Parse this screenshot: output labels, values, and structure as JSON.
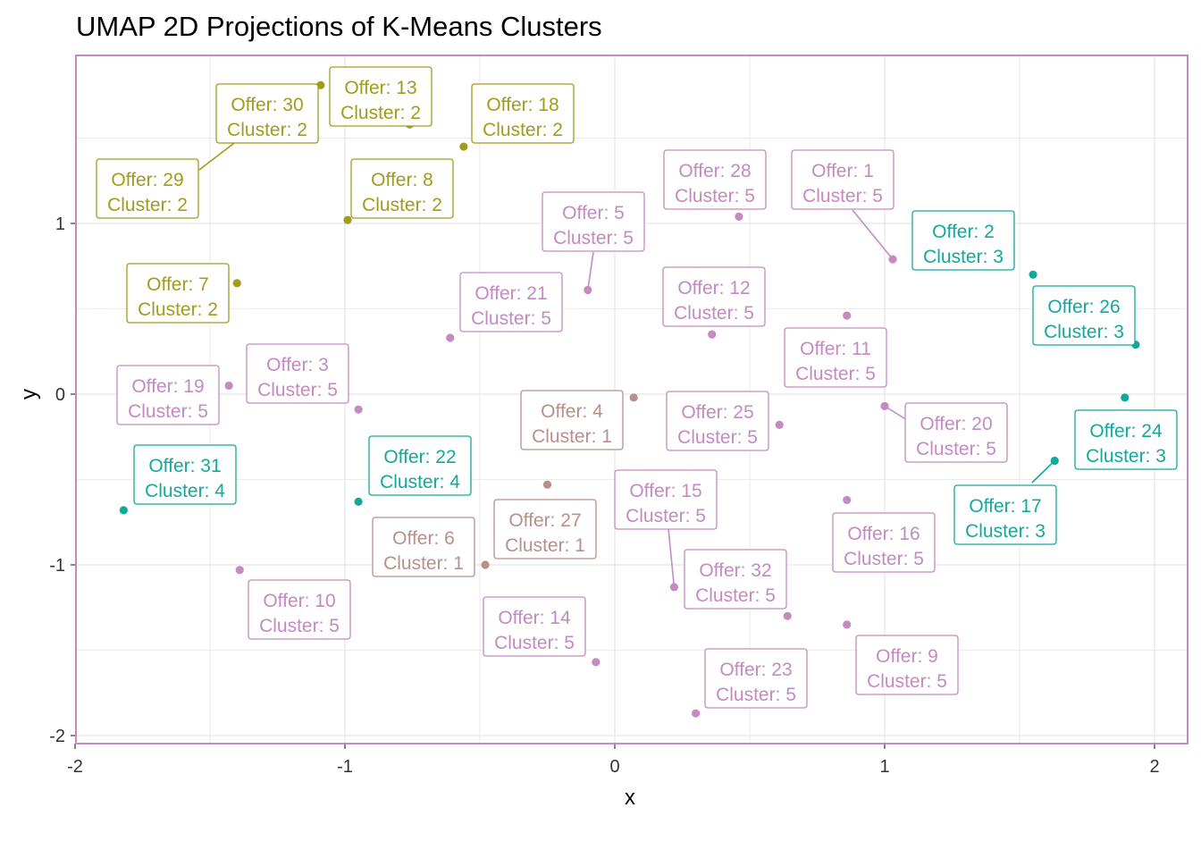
{
  "chart_data": {
    "type": "scatter",
    "title": "UMAP 2D Projections of K-Means Clusters",
    "xlabel": "x",
    "ylabel": "y",
    "xlim": [
      -2.0,
      2.12
    ],
    "ylim": [
      -2.05,
      1.99
    ],
    "x_ticks": [
      -2,
      -1,
      0,
      1,
      2
    ],
    "y_ticks": [
      -2,
      -1,
      0,
      1
    ],
    "grid": true,
    "legend": "none",
    "colors": {
      "cluster_1": "#b8908a",
      "cluster_2": "#a19c1d",
      "cluster_3": "#12a99c",
      "cluster_4": "#12a99c",
      "cluster_5": "#c48ac2",
      "panel_border": "#c48ac2",
      "grid": "#e5e5e5"
    },
    "points": [
      {
        "x": 1.03,
        "y": 0.79,
        "cluster": 5,
        "line1": "Offer: 1",
        "line2": "Cluster: 5"
      },
      {
        "x": 1.55,
        "y": 0.7,
        "cluster": 3,
        "line1": "Offer: 2",
        "line2": "Cluster: 3"
      },
      {
        "x": -0.95,
        "y": -0.09,
        "cluster": 5,
        "line1": "Offer: 3",
        "line2": "Cluster: 5"
      },
      {
        "x": 0.07,
        "y": -0.02,
        "cluster": 1,
        "line1": "Offer: 4",
        "line2": "Cluster: 1"
      },
      {
        "x": -0.1,
        "y": 0.61,
        "cluster": 5,
        "line1": "Offer: 5",
        "line2": "Cluster: 5"
      },
      {
        "x": -0.48,
        "y": -1.0,
        "cluster": 1,
        "line1": "Offer: 6",
        "line2": "Cluster: 1"
      },
      {
        "x": -1.4,
        "y": 0.65,
        "cluster": 2,
        "line1": "Offer: 7",
        "line2": "Cluster: 2"
      },
      {
        "x": -0.99,
        "y": 1.02,
        "cluster": 2,
        "line1": "Offer: 8",
        "line2": "Cluster: 2"
      },
      {
        "x": 0.86,
        "y": -1.35,
        "cluster": 5,
        "line1": "Offer: 9",
        "line2": "Cluster: 5"
      },
      {
        "x": -1.39,
        "y": -1.03,
        "cluster": 5,
        "line1": "Offer: 10",
        "line2": "Cluster: 5"
      },
      {
        "x": 0.86,
        "y": 0.46,
        "cluster": 5,
        "line1": "Offer: 11",
        "line2": "Cluster: 5"
      },
      {
        "x": 0.36,
        "y": 0.35,
        "cluster": 5,
        "line1": "Offer: 12",
        "line2": "Cluster: 5"
      },
      {
        "x": -0.76,
        "y": 1.58,
        "cluster": 2,
        "line1": "Offer: 13",
        "line2": "Cluster: 2"
      },
      {
        "x": -0.07,
        "y": -1.57,
        "cluster": 5,
        "line1": "Offer: 14",
        "line2": "Cluster: 5"
      },
      {
        "x": 0.22,
        "y": -1.13,
        "cluster": 5,
        "line1": "Offer: 15",
        "line2": "Cluster: 5"
      },
      {
        "x": 0.86,
        "y": -0.62,
        "cluster": 5,
        "line1": "Offer: 16",
        "line2": "Cluster: 5"
      },
      {
        "x": 1.63,
        "y": -0.39,
        "cluster": 3,
        "line1": "Offer: 17",
        "line2": "Cluster: 3"
      },
      {
        "x": -0.56,
        "y": 1.45,
        "cluster": 2,
        "line1": "Offer: 18",
        "line2": "Cluster: 2"
      },
      {
        "x": -1.43,
        "y": 0.05,
        "cluster": 5,
        "line1": "Offer: 19",
        "line2": "Cluster: 5"
      },
      {
        "x": 1.0,
        "y": -0.07,
        "cluster": 5,
        "line1": "Offer: 20",
        "line2": "Cluster: 5"
      },
      {
        "x": -0.61,
        "y": 0.33,
        "cluster": 5,
        "line1": "Offer: 21",
        "line2": "Cluster: 5"
      },
      {
        "x": -0.95,
        "y": -0.63,
        "cluster": 4,
        "line1": "Offer: 22",
        "line2": "Cluster: 4"
      },
      {
        "x": 0.3,
        "y": -1.87,
        "cluster": 5,
        "line1": "Offer: 23",
        "line2": "Cluster: 5"
      },
      {
        "x": 1.89,
        "y": -0.02,
        "cluster": 3,
        "line1": "Offer: 24",
        "line2": "Cluster: 3"
      },
      {
        "x": 0.61,
        "y": -0.18,
        "cluster": 5,
        "line1": "Offer: 25",
        "line2": "Cluster: 5"
      },
      {
        "x": 1.93,
        "y": 0.29,
        "cluster": 3,
        "line1": "Offer: 26",
        "line2": "Cluster: 3"
      },
      {
        "x": -0.25,
        "y": -0.53,
        "cluster": 1,
        "line1": "Offer: 27",
        "line2": "Cluster: 1"
      },
      {
        "x": 0.46,
        "y": 1.04,
        "cluster": 5,
        "line1": "Offer: 28",
        "line2": "Cluster: 5"
      },
      {
        "x": -1.37,
        "y": 1.52,
        "cluster": 2,
        "line1": "Offer: 29",
        "line2": "Cluster: 2"
      },
      {
        "x": -1.09,
        "y": 1.81,
        "cluster": 2,
        "line1": "Offer: 30",
        "line2": "Cluster: 2"
      },
      {
        "x": -1.82,
        "y": -0.68,
        "cluster": 4,
        "line1": "Offer: 31",
        "line2": "Cluster: 4"
      },
      {
        "x": 0.64,
        "y": -1.3,
        "cluster": 5,
        "line1": "Offer: 32",
        "line2": "Cluster: 5"
      }
    ]
  }
}
